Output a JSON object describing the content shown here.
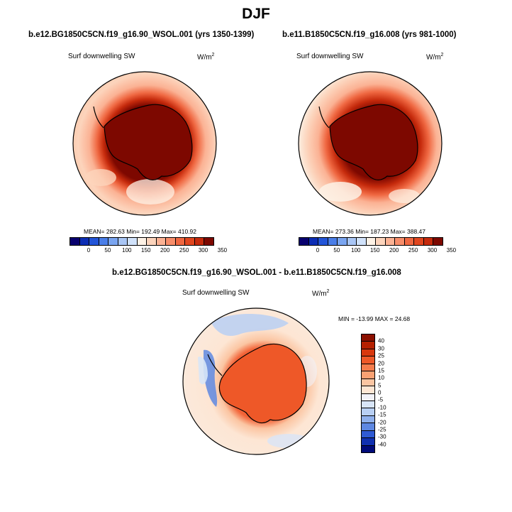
{
  "figure_title": "DJF",
  "chart_data": [
    {
      "type": "heatmap",
      "projection": "south polar stereographic",
      "title": "b.e12.BG1850C5CN.f19_g16.90_WSOL.001 (yrs 1350-1399)",
      "variable": "Surf downwelling SW",
      "units": "W/m",
      "units_sup": "2",
      "stats": {
        "mean": 282.63,
        "min": 192.49,
        "max": 410.92
      },
      "stats_text": "MEAN= 282.63  Min= 192.49  Max= 410.92",
      "colorbar_levels": [
        0,
        50,
        100,
        150,
        200,
        250,
        300,
        350
      ],
      "colorbar_labels": [
        "0",
        "50",
        "100",
        "150",
        "200",
        "250",
        "300",
        "350"
      ],
      "colorbar_colors": [
        "#08006e",
        "#0c2db4",
        "#2355d8",
        "#4a7ee8",
        "#7aa5f0",
        "#a9c6f5",
        "#d1e2fa",
        "#fdf2e6",
        "#fcd4bc",
        "#fbb294",
        "#f78d6a",
        "#ef6741",
        "#e0461f",
        "#c52a0c",
        "#7d0800"
      ]
    },
    {
      "type": "heatmap",
      "projection": "south polar stereographic",
      "title": "b.e11.B1850C5CN.f19_g16.008 (yrs 981-1000)",
      "variable": "Surf downwelling SW",
      "units": "W/m",
      "units_sup": "2",
      "stats": {
        "mean": 273.36,
        "min": 187.23,
        "max": 388.47
      },
      "stats_text": "MEAN= 273.36  Min= 187.23  Max= 388.47",
      "colorbar_levels": [
        0,
        50,
        100,
        150,
        200,
        250,
        300,
        350
      ],
      "colorbar_labels": [
        "0",
        "50",
        "100",
        "150",
        "200",
        "250",
        "300",
        "350"
      ],
      "colorbar_colors": [
        "#08006e",
        "#0c2db4",
        "#2355d8",
        "#4a7ee8",
        "#7aa5f0",
        "#a9c6f5",
        "#d1e2fa",
        "#fdf2e6",
        "#fcd4bc",
        "#fbb294",
        "#f78d6a",
        "#ef6741",
        "#e0461f",
        "#c52a0c",
        "#7d0800"
      ]
    },
    {
      "type": "heatmap",
      "projection": "south polar stereographic",
      "title": "b.e12.BG1850C5CN.f19_g16.90_WSOL.001 - b.e11.B1850C5CN.f19_g16.008",
      "variable": "Surf downwelling SW",
      "units": "W/m",
      "units_sup": "2",
      "stats": {
        "min": -13.99,
        "max": 24.68
      },
      "stats_text": "MIN = -13.99 MAX =  24.68",
      "colorbar_levels": [
        40,
        30,
        25,
        20,
        15,
        10,
        5,
        0,
        -5,
        -10,
        -15,
        -20,
        -25,
        -30,
        -40
      ],
      "colorbar_labels": [
        "40",
        "30",
        "25",
        "20",
        "15",
        "10",
        "5",
        "0",
        "-5",
        "-10",
        "-15",
        "-20",
        "-25",
        "-30",
        "-40"
      ],
      "colorbar_colors": [
        "#8c1000",
        "#b52000",
        "#d8380e",
        "#ee5828",
        "#f57c4c",
        "#f9a173",
        "#fbc5a2",
        "#fde6d4",
        "#f2f2f8",
        "#d8e5f7",
        "#b8cff3",
        "#8fb0ec",
        "#5e88e2",
        "#2f5ad4",
        "#1030b0",
        "#000a7a"
      ]
    }
  ]
}
